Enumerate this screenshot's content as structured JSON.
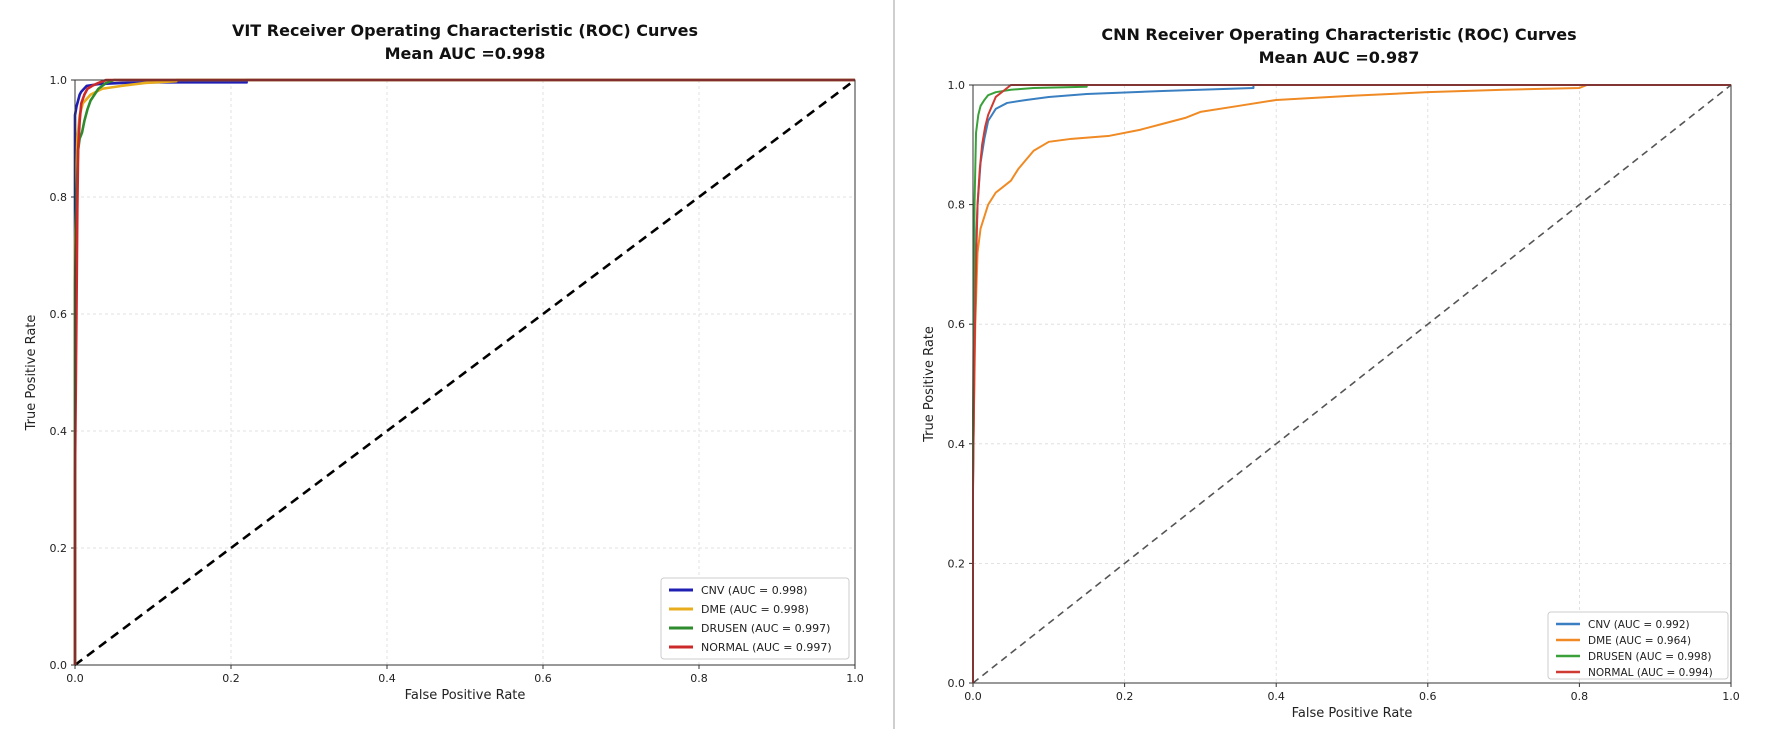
{
  "chart_data": [
    {
      "type": "line",
      "title": "VIT Receiver Operating Characteristic (ROC) Curves",
      "subtitle": "Mean AUC =0.998",
      "xlabel": "False Positive Rate",
      "ylabel": "True Positive Rate",
      "xlim": [
        0,
        1
      ],
      "ylim": [
        0,
        1
      ],
      "xticks": [
        "0.0",
        "0.2",
        "0.4",
        "0.6",
        "0.8",
        "1.0"
      ],
      "yticks": [
        "0.0",
        "0.2",
        "0.4",
        "0.6",
        "0.8",
        "1.0"
      ],
      "grid": true,
      "legend_position": "bottom-right",
      "diagonal": {
        "style": "dashed",
        "color": "#000000"
      },
      "series": [
        {
          "name": "CNV (AUC = 0.998)",
          "color": "#1f1fb4",
          "x": [
            0,
            0,
            0.002,
            0.004,
            0.006,
            0.008,
            0.015,
            0.03,
            0.06,
            0.1,
            0.22,
            0.22,
            1.0
          ],
          "y": [
            0,
            0.94,
            0.955,
            0.965,
            0.975,
            0.98,
            0.99,
            0.993,
            0.995,
            0.996,
            0.996,
            1.0,
            1.0
          ]
        },
        {
          "name": "DME (AUC = 0.998)",
          "color": "#e8ac1c",
          "x": [
            0,
            0,
            0.003,
            0.006,
            0.01,
            0.02,
            0.035,
            0.06,
            0.09,
            0.13,
            0.13,
            1.0
          ],
          "y": [
            0,
            0.72,
            0.9,
            0.94,
            0.96,
            0.975,
            0.985,
            0.99,
            0.995,
            0.998,
            1.0,
            1.0
          ]
        },
        {
          "name": "DRUSEN (AUC = 0.997)",
          "color": "#2e8b2e",
          "x": [
            0,
            0,
            0.002,
            0.004,
            0.006,
            0.009,
            0.012,
            0.016,
            0.02,
            0.025,
            0.03,
            0.04,
            0.05,
            1.0
          ],
          "y": [
            0,
            0.65,
            0.8,
            0.88,
            0.9,
            0.91,
            0.93,
            0.95,
            0.965,
            0.975,
            0.985,
            0.995,
            1.0,
            1.0
          ]
        },
        {
          "name": "NORMAL (AUC = 0.997)",
          "color": "#cc2a2a",
          "x": [
            0,
            0,
            0.002,
            0.003,
            0.004,
            0.006,
            0.008,
            0.012,
            0.016,
            0.022,
            0.03,
            0.04,
            1.0
          ],
          "y": [
            0,
            0.32,
            0.62,
            0.78,
            0.88,
            0.93,
            0.96,
            0.975,
            0.985,
            0.99,
            0.995,
            1.0,
            1.0
          ]
        }
      ]
    },
    {
      "type": "line",
      "title": "CNN Receiver Operating Characteristic (ROC) Curves",
      "subtitle": "Mean AUC =0.987",
      "xlabel": "False Positive Rate",
      "ylabel": "True Positive Rate",
      "xlim": [
        0,
        1
      ],
      "ylim": [
        0,
        1
      ],
      "xticks": [
        "0.0",
        "0.2",
        "0.4",
        "0.6",
        "0.8",
        "1.0"
      ],
      "yticks": [
        "0.0",
        "0.2",
        "0.4",
        "0.6",
        "0.8",
        "1.0"
      ],
      "grid": true,
      "legend_position": "bottom-right",
      "diagonal": {
        "style": "dashed",
        "color": "#555555"
      },
      "series": [
        {
          "name": "CNV (AUC = 0.992)",
          "color": "#3a7fc1",
          "x": [
            0,
            0,
            0.003,
            0.006,
            0.01,
            0.015,
            0.02,
            0.03,
            0.045,
            0.07,
            0.1,
            0.15,
            0.25,
            0.37,
            0.37,
            1.0
          ],
          "y": [
            0,
            0.33,
            0.7,
            0.8,
            0.87,
            0.91,
            0.94,
            0.96,
            0.97,
            0.975,
            0.98,
            0.985,
            0.99,
            0.995,
            1.0,
            1.0
          ]
        },
        {
          "name": "DME (AUC = 0.964)",
          "color": "#f08a24",
          "x": [
            0,
            0,
            0.003,
            0.006,
            0.01,
            0.015,
            0.02,
            0.03,
            0.04,
            0.05,
            0.06,
            0.08,
            0.1,
            0.13,
            0.18,
            0.22,
            0.25,
            0.28,
            0.3,
            0.35,
            0.4,
            0.5,
            0.6,
            0.7,
            0.8,
            0.81,
            1.0
          ],
          "y": [
            0,
            0.35,
            0.6,
            0.72,
            0.76,
            0.78,
            0.8,
            0.82,
            0.83,
            0.84,
            0.86,
            0.89,
            0.905,
            0.91,
            0.915,
            0.925,
            0.935,
            0.945,
            0.955,
            0.965,
            0.975,
            0.982,
            0.988,
            0.992,
            0.995,
            1.0,
            1.0
          ]
        },
        {
          "name": "DRUSEN (AUC = 0.998)",
          "color": "#3aa13a",
          "x": [
            0,
            0,
            0.002,
            0.004,
            0.007,
            0.01,
            0.015,
            0.02,
            0.03,
            0.05,
            0.08,
            0.15,
            0.15,
            1.0
          ],
          "y": [
            0,
            0.45,
            0.8,
            0.92,
            0.95,
            0.965,
            0.975,
            0.983,
            0.988,
            0.992,
            0.995,
            0.997,
            1.0,
            1.0
          ]
        },
        {
          "name": "NORMAL (AUC = 0.994)",
          "color": "#cf3a33",
          "x": [
            0,
            0,
            0.002,
            0.004,
            0.006,
            0.009,
            0.012,
            0.016,
            0.02,
            0.025,
            0.03,
            0.04,
            0.05,
            1.0
          ],
          "y": [
            0,
            0.32,
            0.55,
            0.7,
            0.8,
            0.86,
            0.9,
            0.93,
            0.95,
            0.965,
            0.98,
            0.99,
            1.0,
            1.0
          ]
        }
      ]
    }
  ]
}
